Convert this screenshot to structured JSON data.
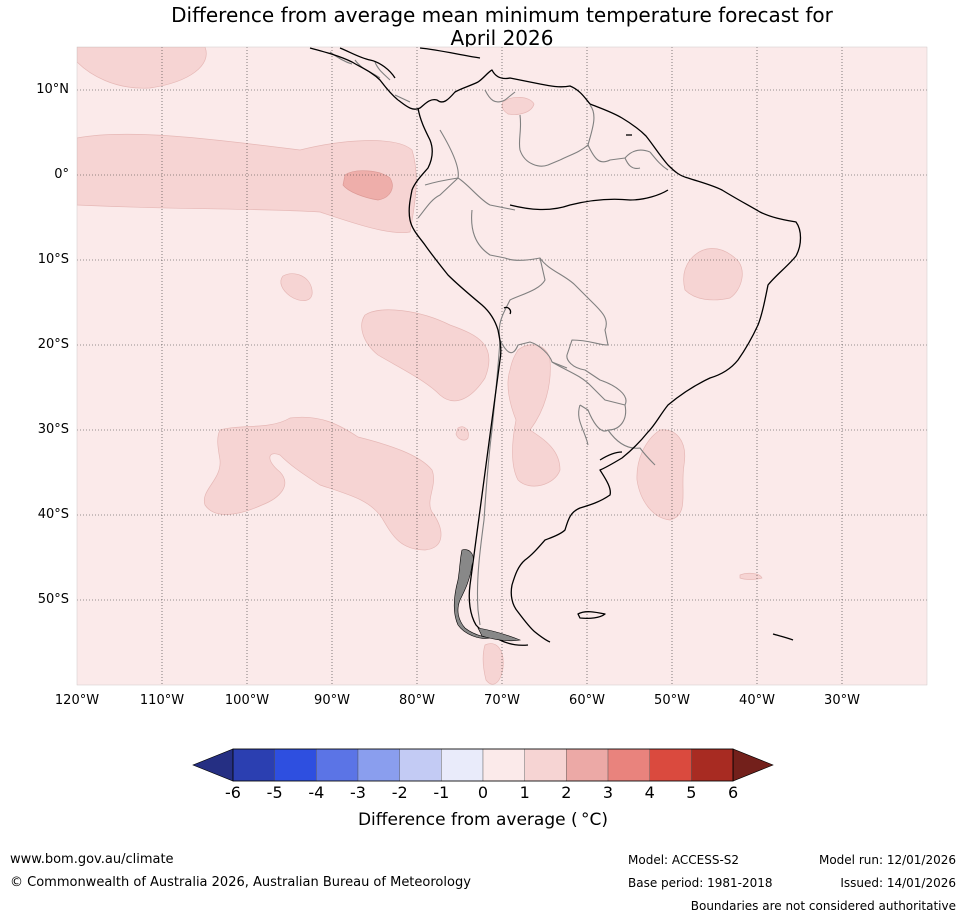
{
  "title": {
    "line1": "Difference from average mean minimum temperature forecast for",
    "line2": "April 2026"
  },
  "chart_data": {
    "type": "heatmap",
    "variable": "Difference from average mean minimum temperature",
    "units": "°C",
    "forecast_month": "April 2026",
    "lon_range": [
      -120,
      -20
    ],
    "lat_range": [
      -60,
      15
    ],
    "latitude_labels": [
      "10°N",
      "0°",
      "10°S",
      "20°S",
      "30°S",
      "40°S",
      "50°S"
    ],
    "longitude_labels": [
      "120°W",
      "110°W",
      "100°W",
      "90°W",
      "80°W",
      "70°W",
      "60°W",
      "50°W",
      "40°W",
      "30°W"
    ],
    "background_category": "0 to 1",
    "anomaly_regions": [
      {
        "category": "1 to 2",
        "area": "equatorial eastern Pacific, 120°W–80°W, 5°S–5°N"
      },
      {
        "category": "2 to 3",
        "area": "near 87°W, 1°S (west of Ecuador)"
      },
      {
        "category": "1 to 2",
        "area": "southeast Pacific, 95°W–78°W, 15°S–27°S"
      },
      {
        "category": "1 to 2",
        "area": "southeast Pacific, 103°W–80°W, 30°S–44°S"
      },
      {
        "category": "1 to 2",
        "area": "Bolivia / northern Argentina, 70°W–63°W, 20°S–37°S"
      },
      {
        "category": "1 to 2",
        "area": "eastern Brazil, near 45°W, 12°S"
      },
      {
        "category": "1 to 2",
        "area": "Uruguay / southern Brazil coast, 53°W–48°W, 30°S–40°S"
      }
    ],
    "colorbar": {
      "ticks": [
        "-6",
        "-5",
        "-4",
        "-3",
        "-2",
        "-1",
        "0",
        "1",
        "2",
        "3",
        "4",
        "5",
        "6"
      ],
      "colors": [
        "#252f83",
        "#2b3fb1",
        "#2e4fe0",
        "#5b74e6",
        "#8a9eee",
        "#c3cbf4",
        "#e9ebfa",
        "#fbeaea",
        "#f6d4d3",
        "#eca9a6",
        "#e9837d",
        "#da4a3e",
        "#a82b22",
        "#73201b"
      ],
      "label": "Difference from average (°C)"
    }
  },
  "colorbar_title": "Difference from average ( °C)",
  "footer": {
    "website": "www.bom.gov.au/climate",
    "copyright": "© Commonwealth of Australia 2026, Australian Bureau of Meteorology",
    "model": "Model: ACCESS-S2",
    "base_period": "Base period: 1981-2018",
    "model_run": "Model run: 12/01/2026",
    "issued": "Issued: 14/01/2026",
    "disclaimer": "Boundaries are not considered authoritative"
  },
  "colors": {
    "background_fill": "#fbeaea",
    "anomaly_1_2": "#f6d4d3",
    "anomaly_2_3": "#eeaeaa",
    "coastline": "#000000",
    "borders": "#808080"
  }
}
